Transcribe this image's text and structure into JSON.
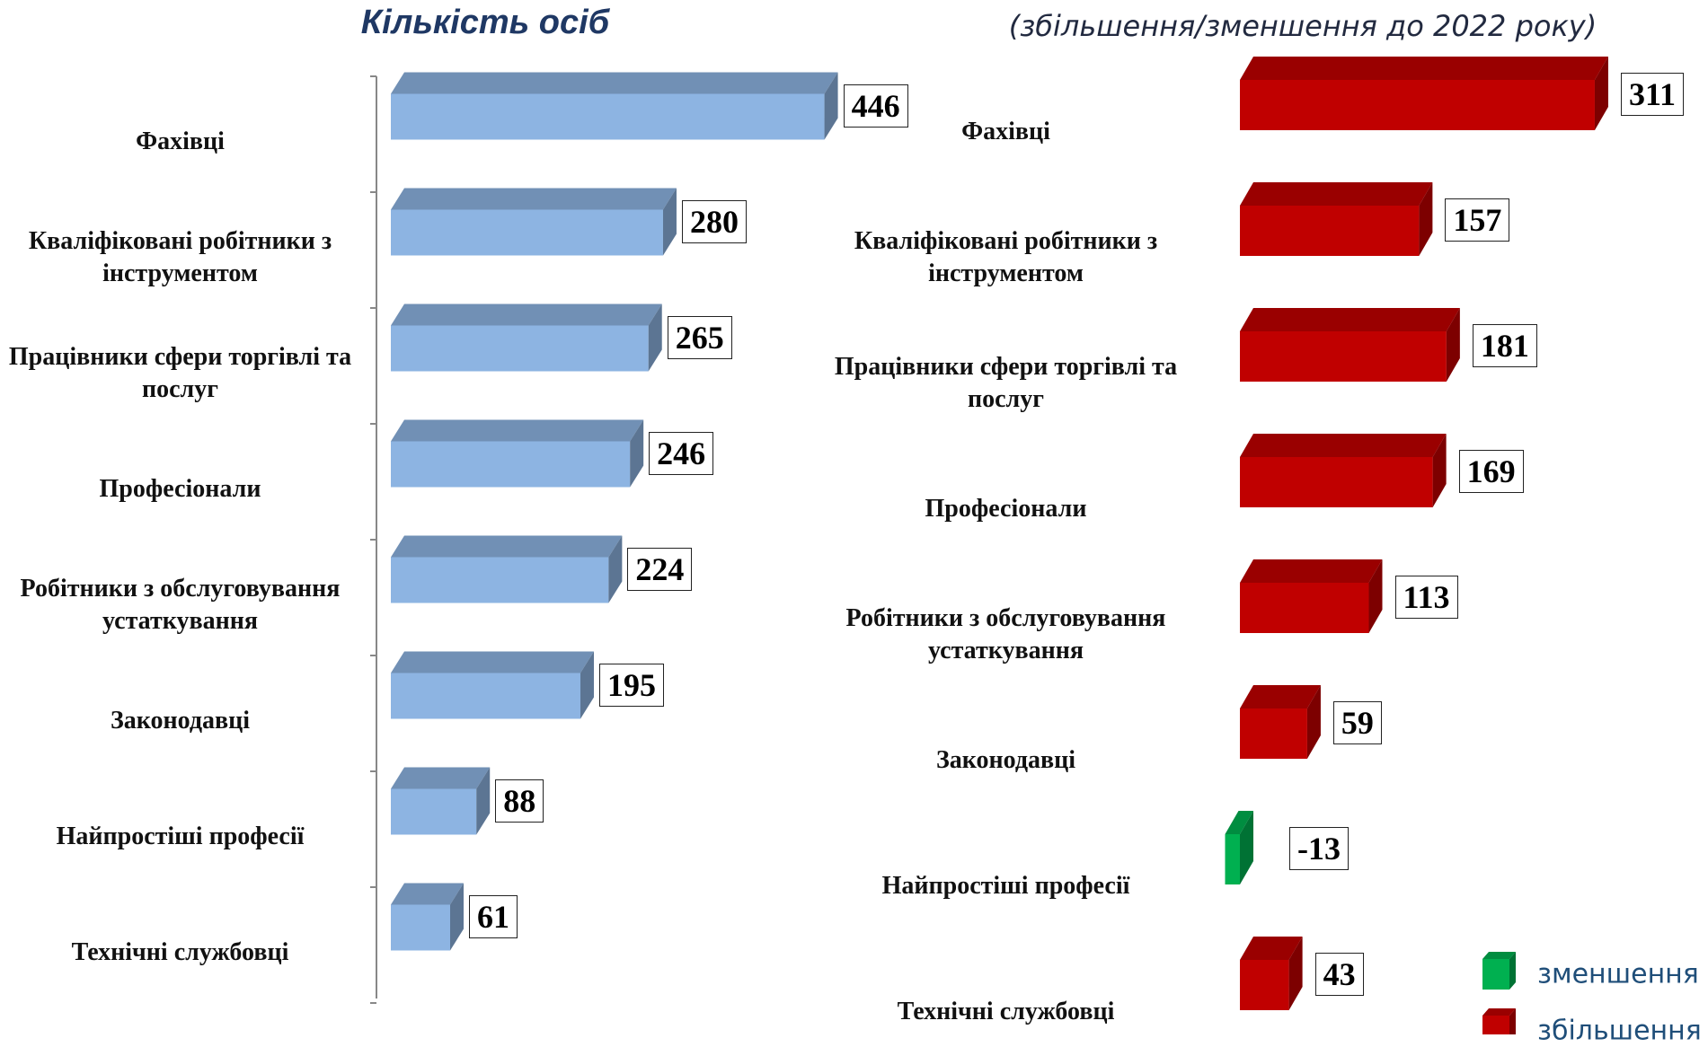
{
  "chart_data": [
    {
      "type": "bar",
      "title": "Кількість осіб",
      "categories": [
        "Фахівці",
        "Кваліфіковані робітники з інструментом",
        "Працівники сфери торгівлі та послуг",
        "Професіонали",
        "Робітники з обслуговування устаткування",
        "Законодавці",
        "Найпростіші професії",
        "Технічні службовці"
      ],
      "values": [
        446,
        280,
        265,
        246,
        224,
        195,
        88,
        61
      ],
      "color": "#8db4e2"
    },
    {
      "type": "bar",
      "title": "(збільшення/зменшення до 2022 року)",
      "categories": [
        "Фахівці",
        "Кваліфіковані робітники з інструментом",
        "Працівники сфери торгівлі та послуг",
        "Професіонали",
        "Робітники з обслуговування устаткування",
        "Законодавці",
        "Найпростіші професії",
        "Технічні службовці"
      ],
      "values": [
        311,
        157,
        181,
        169,
        113,
        59,
        -13,
        43
      ],
      "legend": [
        {
          "label": "зменшення",
          "color": "#00b050"
        },
        {
          "label": "збільшення",
          "color": "#c00000"
        }
      ]
    }
  ]
}
